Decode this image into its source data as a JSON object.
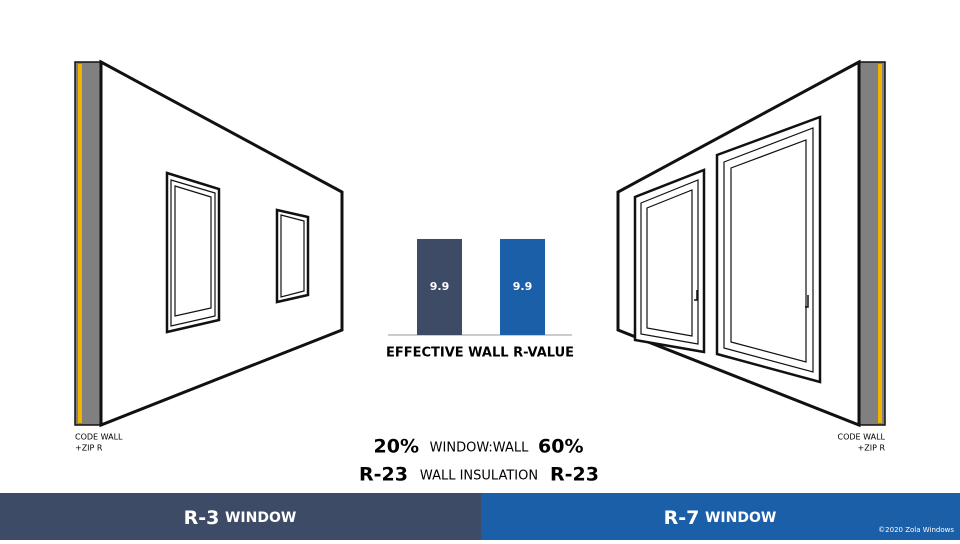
{
  "chart_data": {
    "type": "bar",
    "title": "EFFECTIVE WALL R-VALUE",
    "categories": [
      null,
      null
    ],
    "values": [
      9.9,
      9.9
    ],
    "colors": [
      "#3d4b66",
      "#1a5fa8"
    ]
  },
  "left_wall_label": [
    "CODE WALL",
    "+ZIP R"
  ],
  "right_wall_label": [
    "CODE WALL",
    "+ZIP R"
  ],
  "window_wall": {
    "left": "20%",
    "label": "WINDOW:WALL",
    "right": "60%"
  },
  "wall_insulation": {
    "left": "R-23",
    "label": "WALL INSULATION",
    "right": "R-23"
  },
  "footer": {
    "left": {
      "rating": "R-3",
      "text": "WINDOW"
    },
    "right": {
      "rating": "R-7",
      "text": "WINDOW"
    },
    "copyright": "©2020 Zola Windows"
  }
}
